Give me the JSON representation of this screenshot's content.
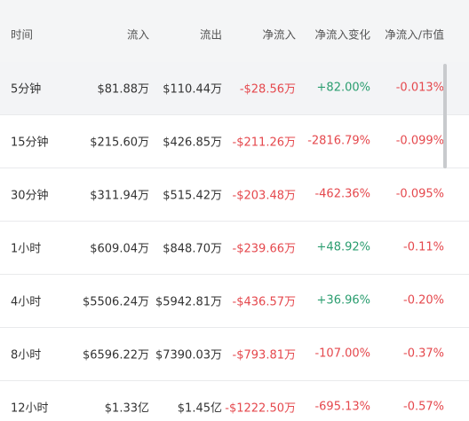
{
  "table": {
    "headers": [
      "时间",
      "流入",
      "流出",
      "净流入",
      "净流入变化",
      "净流入/市值"
    ],
    "rows": [
      [
        "5分钟",
        "$81.88万",
        "$110.44万",
        "-$28.56万",
        "+82.00%",
        "-0.013%"
      ],
      [
        "15分钟",
        "$215.60万",
        "$426.85万",
        "-$211.26万",
        "-2816.79%",
        "-0.099%"
      ],
      [
        "30分钟",
        "$311.94万",
        "$515.42万",
        "-$203.48万",
        "-462.36%",
        "-0.095%"
      ],
      [
        "1小时",
        "$609.04万",
        "$848.70万",
        "-$239.66万",
        "+48.92%",
        "-0.11%"
      ],
      [
        "4小时",
        "$5506.24万",
        "$5942.81万",
        "-$436.57万",
        "+36.96%",
        "-0.20%"
      ],
      [
        "8小时",
        "$6596.22万",
        "$7390.03万",
        "-$793.81万",
        "-107.00%",
        "-0.37%"
      ],
      [
        "12小时",
        "$1.33亿",
        "$1.45亿",
        "-$1222.50万",
        "-695.13%",
        "-0.57%"
      ]
    ],
    "negative_color": "#e5484d",
    "positive_color": "#2a9d6f"
  }
}
